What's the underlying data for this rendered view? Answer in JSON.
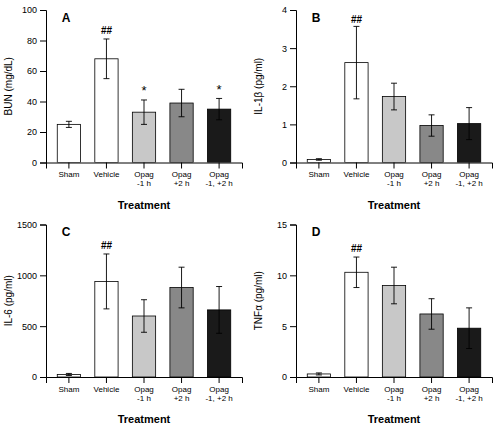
{
  "chart_data": [
    {
      "type": "bar",
      "title": "A",
      "xlabel": "Treatment",
      "ylabel": "BUN (mg/dL)",
      "categories": [
        "Sham",
        "Vehicle",
        "Opag\n-1 h",
        "Opag\n+2 h",
        "Opag\n-1, +2 h"
      ],
      "values": [
        25,
        68,
        33,
        39,
        35
      ],
      "errors": [
        2,
        13,
        8,
        9,
        7
      ],
      "colors": [
        "white",
        "white",
        "#c8c8c8",
        "#888888",
        "#1a1a1a"
      ],
      "ylim": [
        0,
        100
      ],
      "yticks": [
        0,
        20,
        40,
        60,
        80,
        100
      ],
      "annotations": [
        {
          "text": "##",
          "category": "Vehicle",
          "y": 84
        },
        {
          "text": "*",
          "category": "Opag\n-1 h",
          "y": 44
        },
        {
          "text": "*",
          "category": "Opag\n-1, +2 h",
          "y": 45
        }
      ]
    },
    {
      "type": "bar",
      "title": "B",
      "xlabel": "Treatment",
      "ylabel": "IL-1β (pg/ml)",
      "categories": [
        "Sham",
        "Vehicle",
        "Opag\n-1 h",
        "Opag\n+2 h",
        "Opag\n-1, +2 h"
      ],
      "values": [
        0.08,
        2.62,
        1.73,
        0.97,
        1.02
      ],
      "errors": [
        0.02,
        0.95,
        0.35,
        0.28,
        0.42
      ],
      "colors": [
        "white",
        "white",
        "#c8c8c8",
        "#888888",
        "#1a1a1a"
      ],
      "ylim": [
        0,
        4
      ],
      "yticks": [
        0,
        1,
        2,
        3,
        4
      ],
      "annotations": [
        {
          "text": "##",
          "category": "Vehicle",
          "y": 3.65
        }
      ]
    },
    {
      "type": "bar",
      "title": "C",
      "xlabel": "Treatment",
      "ylabel": "IL-6 (pg/ml)",
      "categories": [
        "Sham",
        "Vehicle",
        "Opag\n-1 h",
        "Opag\n+2 h",
        "Opag\n-1, +2 h"
      ],
      "values": [
        25,
        940,
        600,
        880,
        660
      ],
      "errors": [
        10,
        270,
        160,
        200,
        230
      ],
      "colors": [
        "white",
        "white",
        "#c8c8c8",
        "#888888",
        "#1a1a1a"
      ],
      "ylim": [
        0,
        1500
      ],
      "yticks": [
        0,
        500,
        1000,
        1500
      ],
      "annotations": [
        {
          "text": "##",
          "category": "Vehicle",
          "y": 1260
        }
      ]
    },
    {
      "type": "bar",
      "title": "D",
      "xlabel": "Treatment",
      "ylabel": "TNFα (pg/ml)",
      "categories": [
        "Sham",
        "Vehicle",
        "Opag\n-1 h",
        "Opag\n+2 h",
        "Opag\n-1, +2 h"
      ],
      "values": [
        0.3,
        10.3,
        9.0,
        6.2,
        4.8
      ],
      "errors": [
        0.1,
        1.5,
        1.8,
        1.5,
        2.0
      ],
      "colors": [
        "white",
        "white",
        "#c8c8c8",
        "#888888",
        "#1a1a1a"
      ],
      "ylim": [
        0,
        15
      ],
      "yticks": [
        0,
        5,
        10,
        15
      ],
      "annotations": [
        {
          "text": "##",
          "category": "Vehicle",
          "y": 12.3
        }
      ]
    }
  ]
}
